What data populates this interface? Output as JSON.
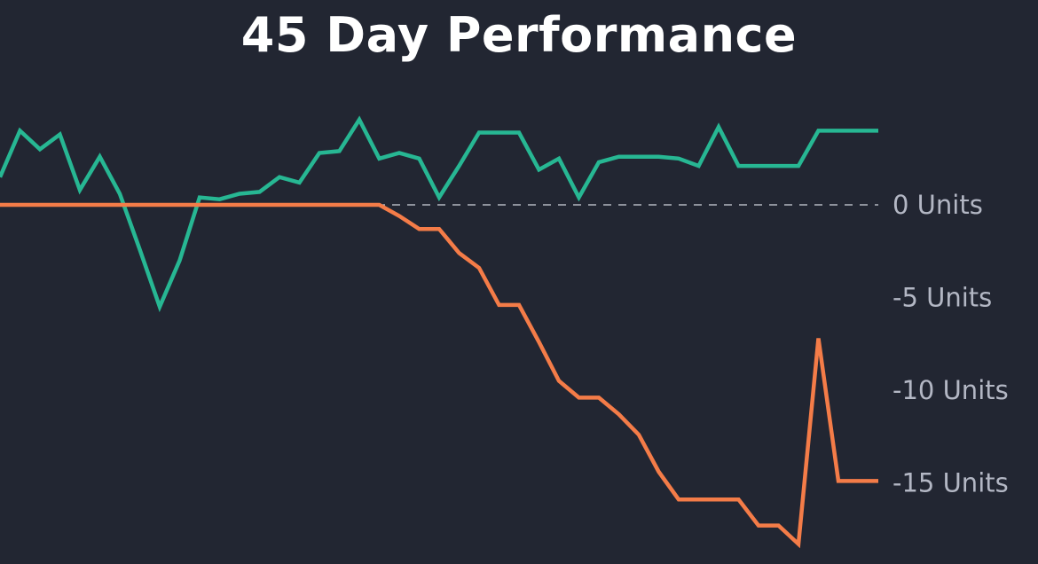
{
  "chart_data": {
    "type": "line",
    "title": "45 Day Performance",
    "xlabel": "",
    "ylabel": "",
    "y_ticks": [
      {
        "value": 0,
        "label": "0 Units"
      },
      {
        "value": -5,
        "label": "-5 Units"
      },
      {
        "value": -10,
        "label": "-10 Units"
      },
      {
        "value": -15,
        "label": "-15 Units"
      }
    ],
    "ylim": [
      -18.3,
      4.6
    ],
    "x": [
      1,
      2,
      3,
      4,
      5,
      6,
      7,
      8,
      9,
      10,
      11,
      12,
      13,
      14,
      15,
      16,
      17,
      18,
      19,
      20,
      21,
      22,
      23,
      24,
      25,
      26,
      27,
      28,
      29,
      30,
      31,
      32,
      33,
      34,
      35,
      36,
      37,
      38,
      39,
      40,
      41,
      42,
      43,
      44,
      45
    ],
    "series": [
      {
        "color": "#27b793",
        "values": [
          1.5,
          4.0,
          3.0,
          3.8,
          0.8,
          2.6,
          0.6,
          -2.4,
          -5.5,
          -3.0,
          0.4,
          0.3,
          0.6,
          0.7,
          1.5,
          1.2,
          2.8,
          2.9,
          4.6,
          2.5,
          2.8,
          2.5,
          0.4,
          2.1,
          3.9,
          3.9,
          3.9,
          1.9,
          2.5,
          0.4,
          2.3,
          2.6,
          2.6,
          2.6,
          2.5,
          2.1,
          4.2,
          2.1,
          2.1,
          2.1,
          2.1,
          4.0,
          4.0,
          4.0,
          4.0
        ]
      },
      {
        "color": "#f47c48",
        "values": [
          0,
          0,
          0,
          0,
          0,
          0,
          0,
          0,
          0,
          0,
          0,
          0,
          0,
          0,
          0,
          0,
          0,
          0,
          0,
          0.0,
          -0.6,
          -1.3,
          -1.3,
          -2.6,
          -3.4,
          -5.4,
          -5.4,
          -7.4,
          -9.5,
          -10.4,
          -10.4,
          -11.3,
          -12.4,
          -14.4,
          -15.9,
          -15.9,
          -15.9,
          -15.9,
          -17.3,
          -17.3,
          -18.3,
          -7.2,
          -14.9,
          -14.9,
          -14.9
        ]
      }
    ],
    "zero_line": {
      "value": 0,
      "style": "dashed",
      "color": "#cfd3dc"
    },
    "grid": false,
    "legend": "none",
    "background": "#222632"
  }
}
